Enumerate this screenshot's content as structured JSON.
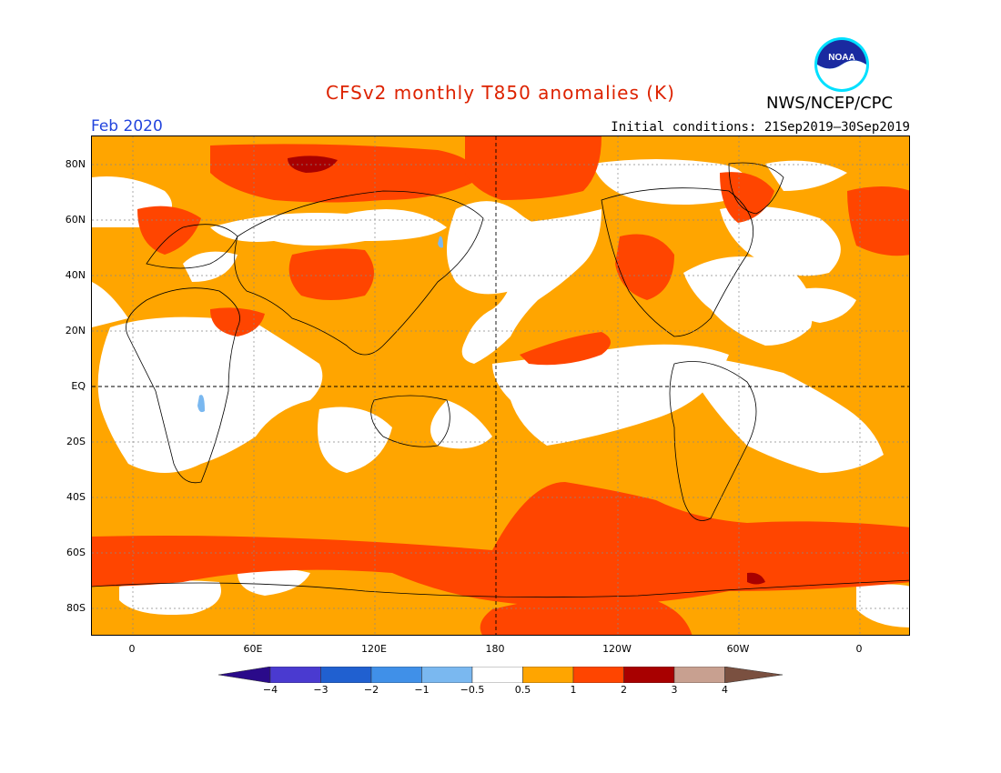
{
  "header": {
    "title": "CFSv2 monthly T850 anomalies (K)",
    "agency": "NWS/NCEP/CPC",
    "valid_month": "Feb 2020",
    "initial_conditions": "Initial conditions: 21Sep2019–30Sep2019",
    "logo_text": "NOAA"
  },
  "colors": {
    "title": "#dd2200",
    "date": "#2244dd",
    "bin_0_5_1": "#ffa500",
    "bin_1_2": "#ff4500",
    "bin_2_3": "#a80000",
    "bin_neg_1_0_5": "#7ab8f0",
    "neutral": "#ffffff"
  },
  "map": {
    "lat_labels": [
      "80N",
      "60N",
      "40N",
      "20N",
      "EQ",
      "20S",
      "40S",
      "60S",
      "80S"
    ],
    "lon_labels": [
      "0",
      "60E",
      "120E",
      "180",
      "120W",
      "60W",
      "0"
    ]
  },
  "colorbar": {
    "colors": [
      "#2a0a8a",
      "#4a3ad0",
      "#2060d0",
      "#4090e8",
      "#7ab8f0",
      "#ffffff",
      "#ffa500",
      "#ff4500",
      "#a80000",
      "#c8a090",
      "#7a5040"
    ],
    "labels": [
      "−4",
      "−3",
      "−2",
      "−1",
      "−0.5",
      "0.5",
      "1",
      "2",
      "3",
      "4"
    ]
  }
}
